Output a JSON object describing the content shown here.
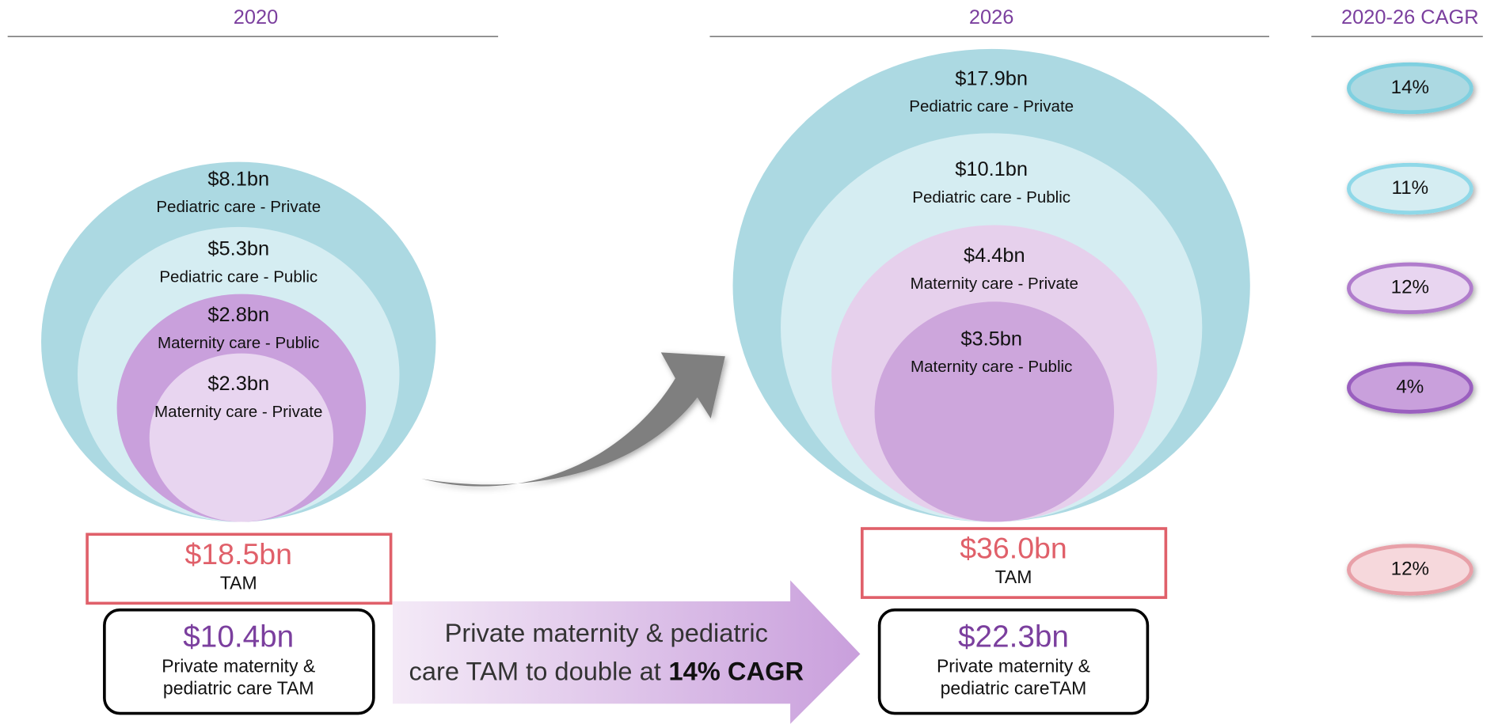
{
  "headers": [
    "2020",
    "2026",
    "2020-26 CAGR"
  ],
  "year_2020": {
    "segments": [
      {
        "value": "$8.1bn",
        "label": "Pediatric care - Private"
      },
      {
        "value": "$5.3bn",
        "label": "Pediatric care - Public"
      },
      {
        "value": "$2.8bn",
        "label": "Maternity care - Public"
      },
      {
        "value": "$2.3bn",
        "label": "Maternity care - Private"
      }
    ],
    "tam": {
      "value": "$18.5bn",
      "label": "TAM"
    },
    "private_tam": {
      "value": "$10.4bn",
      "lines": [
        "Private maternity &",
        "pediatric care TAM"
      ]
    }
  },
  "year_2026": {
    "segments": [
      {
        "value": "$17.9bn",
        "label": "Pediatric care - Private"
      },
      {
        "value": "$10.1bn",
        "label": "Pediatric care - Public"
      },
      {
        "value": "$4.4bn",
        "label": "Maternity care - Private"
      },
      {
        "value": "$3.5bn",
        "label": "Maternity care - Public"
      }
    ],
    "tam": {
      "value": "$36.0bn",
      "label": "TAM"
    },
    "private_tam": {
      "value": "$22.3bn",
      "lines": [
        "Private maternity &",
        "pediatric careTAM"
      ]
    }
  },
  "cagr": [
    "14%",
    "11%",
    "12%",
    "4%",
    "12%"
  ],
  "arrow_text": {
    "line1": "Private maternity & pediatric",
    "line2": "care TAM to double at",
    "bold": "14% CAGR"
  }
}
